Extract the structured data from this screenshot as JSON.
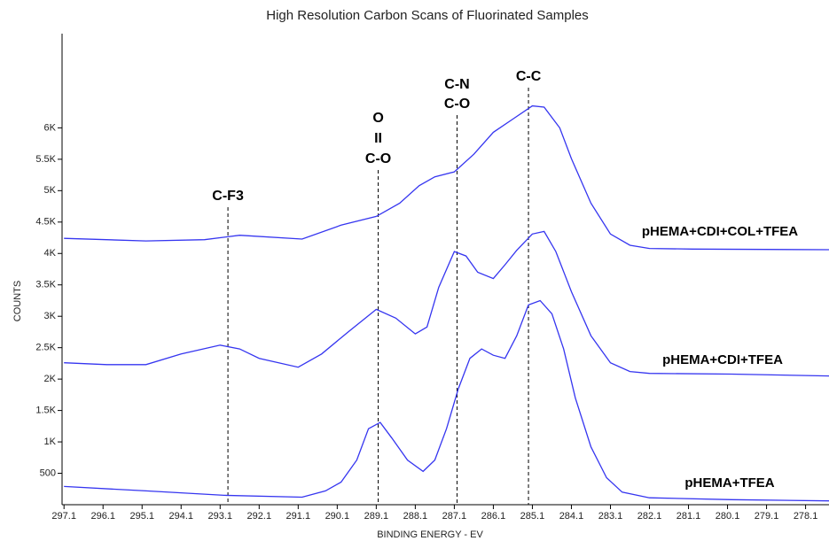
{
  "chart_data": {
    "type": "line",
    "title": "High Resolution Carbon Scans of Fluorinated Samples",
    "x_label": "BINDING ENERGY - EV",
    "y_label": "COUNTS",
    "xlim": [
      297.15,
      277.5
    ],
    "ylim": [
      0,
      7500
    ],
    "xticks": [
      297.1,
      296.1,
      295.1,
      294.1,
      293.1,
      292.1,
      291.1,
      290.1,
      289.1,
      288.1,
      287.1,
      286.1,
      285.1,
      284.1,
      283.1,
      282.1,
      281.1,
      280.1,
      279.1,
      278.1
    ],
    "yticks": [
      500,
      {
        "value": 1000,
        "label": "1K"
      },
      {
        "value": 1500,
        "label": "1.5K"
      },
      {
        "value": 2000,
        "label": "2K"
      },
      {
        "value": 2500,
        "label": "2.5K"
      },
      {
        "value": 3000,
        "label": "3K"
      },
      {
        "value": 3500,
        "label": "3.5K"
      },
      {
        "value": 4000,
        "label": "4K"
      },
      {
        "value": 4500,
        "label": "4.5K"
      },
      {
        "value": 5000,
        "label": "5K"
      },
      {
        "value": 5500,
        "label": "5.5K"
      },
      {
        "value": 6000,
        "label": "6K"
      }
    ],
    "series": [
      {
        "name": "pHEMA+CDI+COL+TFEA",
        "color": "#3535f0",
        "x": [
          297.1,
          295.0,
          293.5,
          292.6,
          291.0,
          290.0,
          289.1,
          288.5,
          288.0,
          287.6,
          287.1,
          286.6,
          286.1,
          285.6,
          285.1,
          284.8,
          284.4,
          284.1,
          283.6,
          283.1,
          282.6,
          282.1,
          281.0,
          277.5
        ],
        "values": [
          4240,
          4200,
          4220,
          4290,
          4230,
          4450,
          4590,
          4800,
          5080,
          5220,
          5300,
          5580,
          5930,
          6140,
          6350,
          6330,
          6000,
          5510,
          4800,
          4310,
          4130,
          4080,
          4070,
          4060
        ]
      },
      {
        "name": "pHEMA+CDI+TFEA",
        "color": "#3535f0",
        "x": [
          297.1,
          296.0,
          295.0,
          294.1,
          293.1,
          292.6,
          292.1,
          291.1,
          290.5,
          289.8,
          289.1,
          288.6,
          288.1,
          287.8,
          287.5,
          287.1,
          286.8,
          286.5,
          286.1,
          285.8,
          285.5,
          285.1,
          284.8,
          284.5,
          284.1,
          283.6,
          283.1,
          282.6,
          282.1,
          280.0,
          277.5
        ],
        "values": [
          2260,
          2230,
          2230,
          2400,
          2540,
          2480,
          2330,
          2190,
          2400,
          2760,
          3110,
          2970,
          2720,
          2830,
          3460,
          4030,
          3960,
          3700,
          3600,
          3820,
          4050,
          4310,
          4350,
          4030,
          3390,
          2690,
          2260,
          2120,
          2090,
          2080,
          2050
        ]
      },
      {
        "name": "pHEMA+TFEA",
        "color": "#3535f0",
        "x": [
          297.1,
          295.0,
          293.0,
          291.0,
          290.4,
          290.0,
          289.6,
          289.3,
          289.0,
          288.7,
          288.3,
          287.9,
          287.6,
          287.3,
          287.0,
          286.7,
          286.4,
          286.1,
          285.8,
          285.5,
          285.2,
          284.9,
          284.6,
          284.3,
          284.0,
          283.6,
          283.2,
          282.8,
          282.1,
          280.0,
          277.5
        ],
        "values": [
          290,
          220,
          150,
          120,
          220,
          360,
          710,
          1210,
          1310,
          1060,
          710,
          530,
          710,
          1210,
          1840,
          2330,
          2480,
          2380,
          2330,
          2690,
          3180,
          3250,
          3040,
          2480,
          1700,
          920,
          430,
          200,
          110,
          80,
          60
        ]
      }
    ],
    "annotations": [
      {
        "x": 292.9,
        "lines": [
          "C-F3"
        ]
      },
      {
        "x": 289.05,
        "lines": [
          "O",
          "II",
          "C-O"
        ]
      },
      {
        "x": 287.03,
        "lines": [
          "C-N",
          "C-O"
        ]
      },
      {
        "x": 285.2,
        "lines": [
          "C-C"
        ]
      }
    ]
  }
}
